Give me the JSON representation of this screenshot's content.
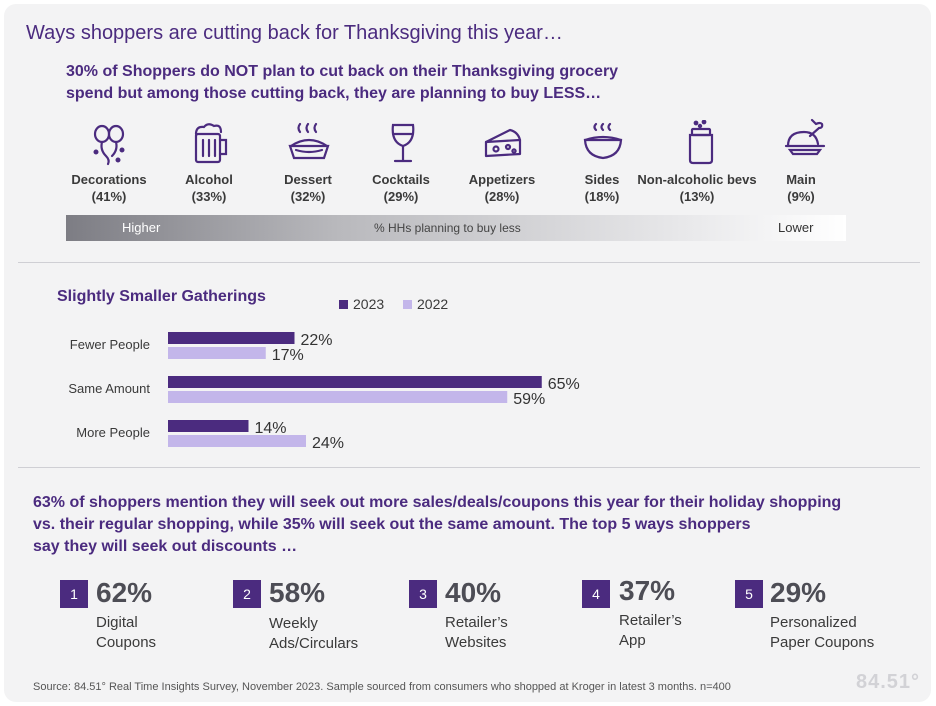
{
  "header": {
    "title": "Ways shoppers are cutting back for Thanksgiving this year…",
    "subtitle_line1": "30% of Shoppers do NOT plan to cut back on their Thanksgiving grocery",
    "subtitle_line2": "spend but among those cutting back, they are planning to buy LESS…"
  },
  "categories": [
    {
      "name": "Decorations",
      "pct": "(41%)",
      "icon": "balloons-icon"
    },
    {
      "name": "Alcohol",
      "pct": "(33%)",
      "icon": "beer-mug-icon"
    },
    {
      "name": "Dessert",
      "pct": "(32%)",
      "icon": "pie-icon"
    },
    {
      "name": "Cocktails",
      "pct": "(29%)",
      "icon": "wine-glass-icon"
    },
    {
      "name": "Appetizers",
      "pct": "(28%)",
      "icon": "cheese-icon"
    },
    {
      "name": "Sides",
      "pct": "(18%)",
      "icon": "bowl-icon"
    },
    {
      "name": "Non-alcoholic bevs",
      "pct": "(13%)",
      "icon": "jar-icon"
    },
    {
      "name": "Main",
      "pct": "(9%)",
      "icon": "turkey-icon"
    }
  ],
  "scale": {
    "higher": "Higher",
    "center": "% HHs planning to buy less",
    "lower": "Lower"
  },
  "chart_data": {
    "type": "bar",
    "orientation": "horizontal",
    "title": "Slightly Smaller Gatherings",
    "categories": [
      "Fewer People",
      "Same Amount",
      "More People"
    ],
    "series": [
      {
        "name": "2023",
        "values": [
          22,
          65,
          14
        ],
        "labels": [
          "22%",
          "65%",
          "14%"
        ],
        "color": "#4b2b7f"
      },
      {
        "name": "2022",
        "values": [
          17,
          59,
          24
        ],
        "labels": [
          "17%",
          "59%",
          "24%"
        ],
        "color": "#c3b6ea"
      }
    ],
    "xlim": [
      0,
      100
    ],
    "grid": false,
    "legend": "top"
  },
  "discounts": {
    "intro_line1": "63% of shoppers mention they will seek out more sales/deals/coupons this year for their holiday shopping",
    "intro_line2": "vs. their regular shopping, while 35% will seek out the same amount. The top 5 ways shoppers",
    "intro_line3": "say they will seek out discounts …",
    "items": [
      {
        "rank": "1",
        "pct": "62%",
        "line1": "Digital",
        "line2": "Coupons"
      },
      {
        "rank": "2",
        "pct": "58%",
        "line1": "Weekly",
        "line2": "Ads/Circulars"
      },
      {
        "rank": "3",
        "pct": "40%",
        "line1": "Retailer’s",
        "line2": "Websites"
      },
      {
        "rank": "4",
        "pct": "37%",
        "line1": "Retailer’s",
        "line2": "App"
      },
      {
        "rank": "5",
        "pct": "29%",
        "line1": "Personalized",
        "line2": "Paper Coupons"
      }
    ]
  },
  "footer": {
    "source": "Source:  84.51° Real Time Insights Survey, November 2023. Sample sourced from consumers who shopped at Kroger in latest 3 months. n=400",
    "logo": "84.51°"
  },
  "colors": {
    "purple": "#4b2b7f",
    "lavender": "#c3b6ea"
  }
}
